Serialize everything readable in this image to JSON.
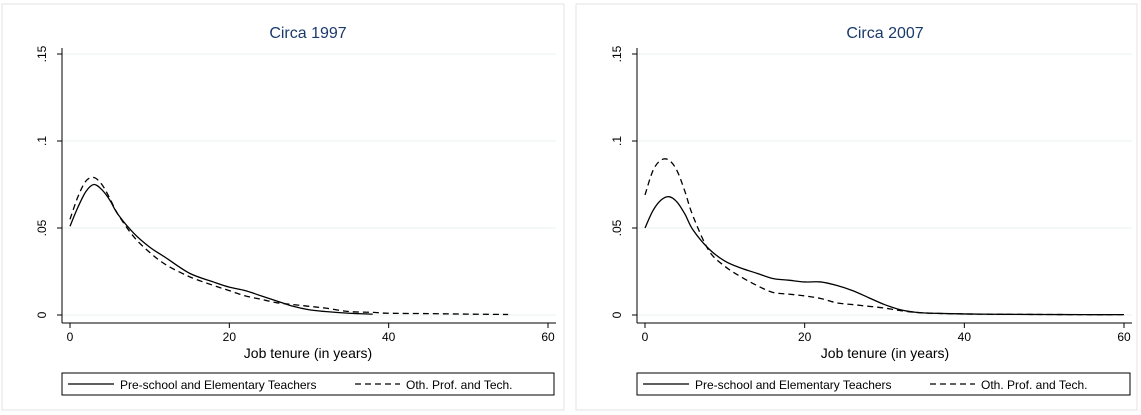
{
  "chart_data": [
    {
      "type": "line",
      "title": "Circa 1997",
      "xlabel": "Job tenure (in years)",
      "ylabel": "",
      "xlim": [
        0,
        60
      ],
      "ylim": [
        0,
        0.15
      ],
      "xticks": [
        "0",
        "20",
        "40",
        "60"
      ],
      "yticks": [
        ".15",
        ".1",
        ".05",
        "0"
      ],
      "grid": true,
      "legend_position": "bottom",
      "series": [
        {
          "name": "Pre-school and Elementary Teachers",
          "style": "solid",
          "x": [
            0,
            1,
            2,
            3,
            4,
            5,
            6,
            8,
            10,
            12,
            15,
            18,
            20,
            22,
            24,
            26,
            28,
            30,
            32,
            35,
            38
          ],
          "y": [
            0.051,
            0.062,
            0.071,
            0.075,
            0.072,
            0.066,
            0.058,
            0.047,
            0.039,
            0.033,
            0.024,
            0.019,
            0.016,
            0.014,
            0.011,
            0.008,
            0.005,
            0.003,
            0.002,
            0.001,
            0.0005
          ]
        },
        {
          "name": "Oth. Prof. and Tech.",
          "style": "dashed",
          "x": [
            0,
            1,
            2,
            3,
            4,
            5,
            6,
            8,
            10,
            12,
            15,
            18,
            20,
            22,
            24,
            26,
            28,
            30,
            32,
            35,
            38,
            40,
            45,
            50,
            55
          ],
          "y": [
            0.055,
            0.068,
            0.077,
            0.079,
            0.075,
            0.067,
            0.058,
            0.045,
            0.036,
            0.029,
            0.022,
            0.017,
            0.014,
            0.011,
            0.009,
            0.007,
            0.006,
            0.005,
            0.004,
            0.002,
            0.0015,
            0.001,
            0.0008,
            0.0005,
            0.0003
          ]
        }
      ]
    },
    {
      "type": "line",
      "title": "Circa 2007",
      "xlabel": "Job tenure (in years)",
      "ylabel": "",
      "xlim": [
        0,
        60
      ],
      "ylim": [
        0,
        0.15
      ],
      "xticks": [
        "0",
        "20",
        "40",
        "60"
      ],
      "yticks": [
        ".15",
        ".1",
        ".05",
        "0"
      ],
      "grid": true,
      "legend_position": "bottom",
      "series": [
        {
          "name": "Pre-school and Elementary Teachers",
          "style": "solid",
          "x": [
            0,
            1,
            2,
            3,
            4,
            5,
            6,
            8,
            10,
            12,
            14,
            16,
            18,
            20,
            22,
            24,
            26,
            28,
            30,
            32,
            34,
            36,
            40,
            45,
            50,
            55,
            60
          ],
          "y": [
            0.05,
            0.06,
            0.066,
            0.068,
            0.065,
            0.058,
            0.049,
            0.038,
            0.031,
            0.027,
            0.024,
            0.021,
            0.02,
            0.019,
            0.019,
            0.017,
            0.014,
            0.01,
            0.006,
            0.003,
            0.0015,
            0.001,
            0.0006,
            0.0004,
            0.0003,
            0.0002,
            0.0002
          ]
        },
        {
          "name": "Oth. Prof. and Tech.",
          "style": "dashed",
          "x": [
            0,
            1,
            2,
            3,
            4,
            5,
            6,
            8,
            10,
            12,
            14,
            16,
            18,
            20,
            22,
            24,
            26,
            28,
            30,
            32,
            34,
            36,
            40,
            45,
            50,
            55,
            60
          ],
          "y": [
            0.069,
            0.083,
            0.089,
            0.089,
            0.083,
            0.071,
            0.057,
            0.037,
            0.028,
            0.022,
            0.017,
            0.013,
            0.012,
            0.011,
            0.0095,
            0.007,
            0.006,
            0.005,
            0.004,
            0.0025,
            0.0015,
            0.001,
            0.0006,
            0.0004,
            0.0003,
            0.0002,
            0.0002
          ]
        }
      ]
    }
  ]
}
